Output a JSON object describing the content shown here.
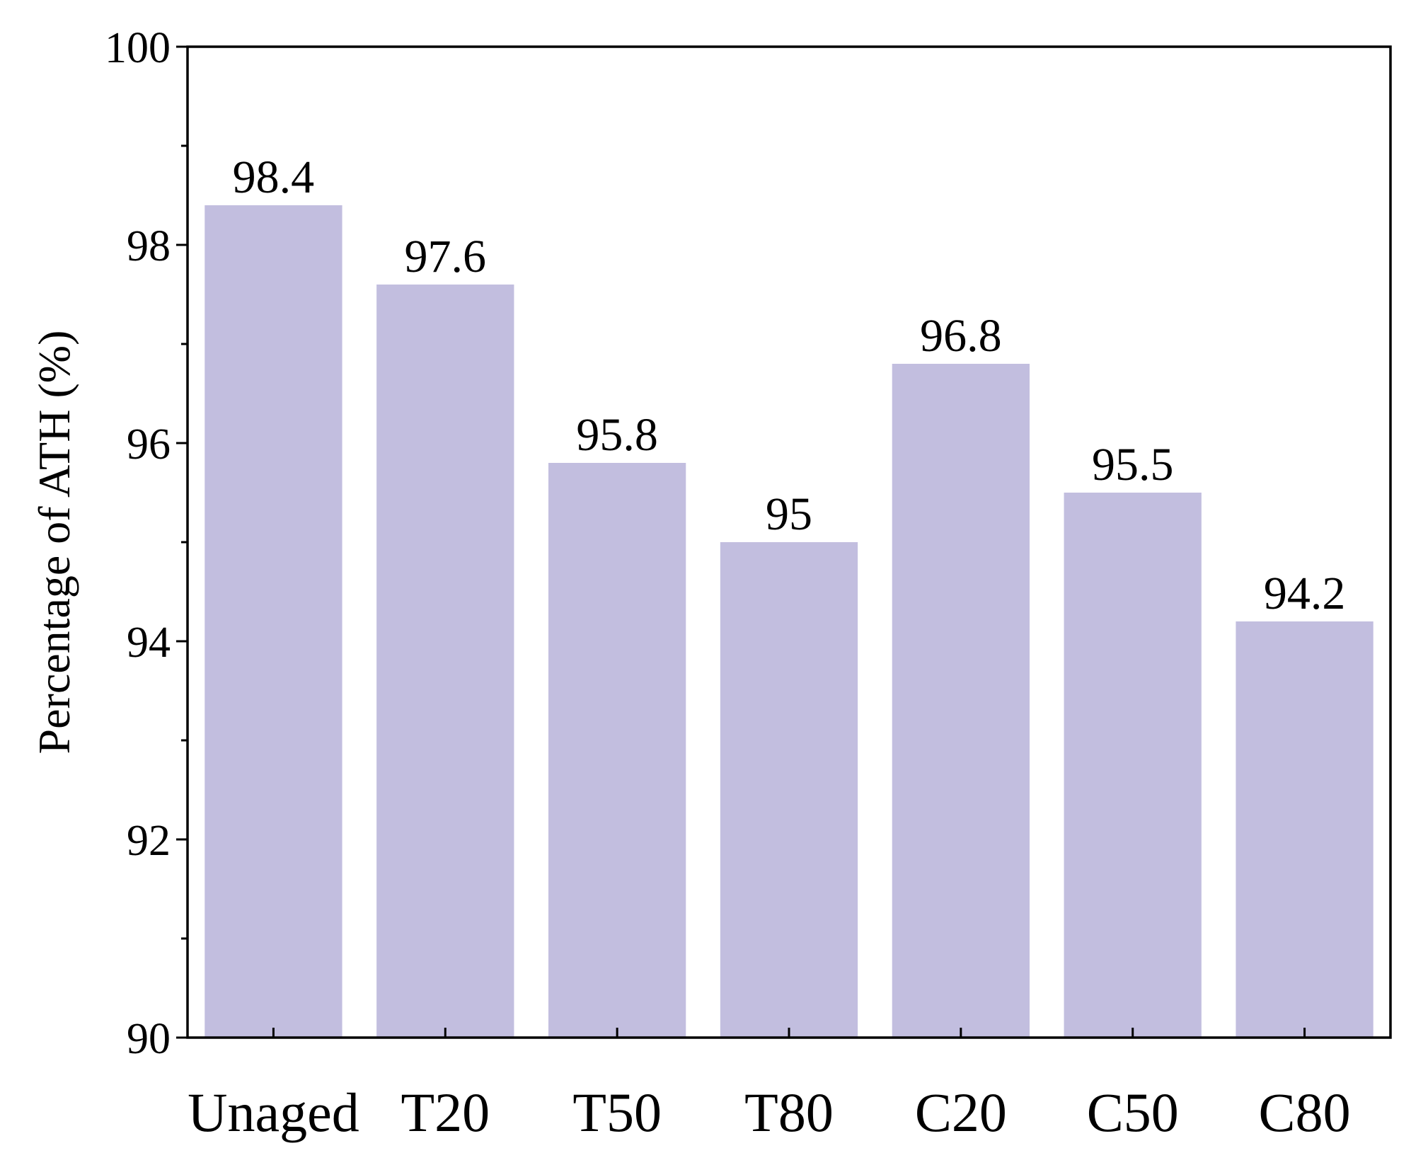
{
  "chart_data": {
    "type": "bar",
    "title": "",
    "xlabel": "",
    "ylabel": "Percentage of ATH (%)",
    "categories": [
      "Unaged",
      "T20",
      "T50",
      "T80",
      "C20",
      "C50",
      "C80"
    ],
    "values": [
      98.4,
      97.6,
      95.8,
      95,
      96.8,
      95.5,
      94.2
    ],
    "value_labels": [
      "98.4",
      "97.6",
      "95.8",
      "95",
      "96.8",
      "95.5",
      "94.2"
    ],
    "ylim": [
      90,
      100
    ],
    "yticks": [
      90,
      92,
      94,
      96,
      98,
      100
    ],
    "ytick_labels": [
      "90",
      "92",
      "94",
      "96",
      "98",
      "100"
    ],
    "y_minor_ticks": [
      91,
      93,
      95,
      97,
      99
    ],
    "bar_color": "#c2bedf",
    "grid": false,
    "legend": "none"
  }
}
